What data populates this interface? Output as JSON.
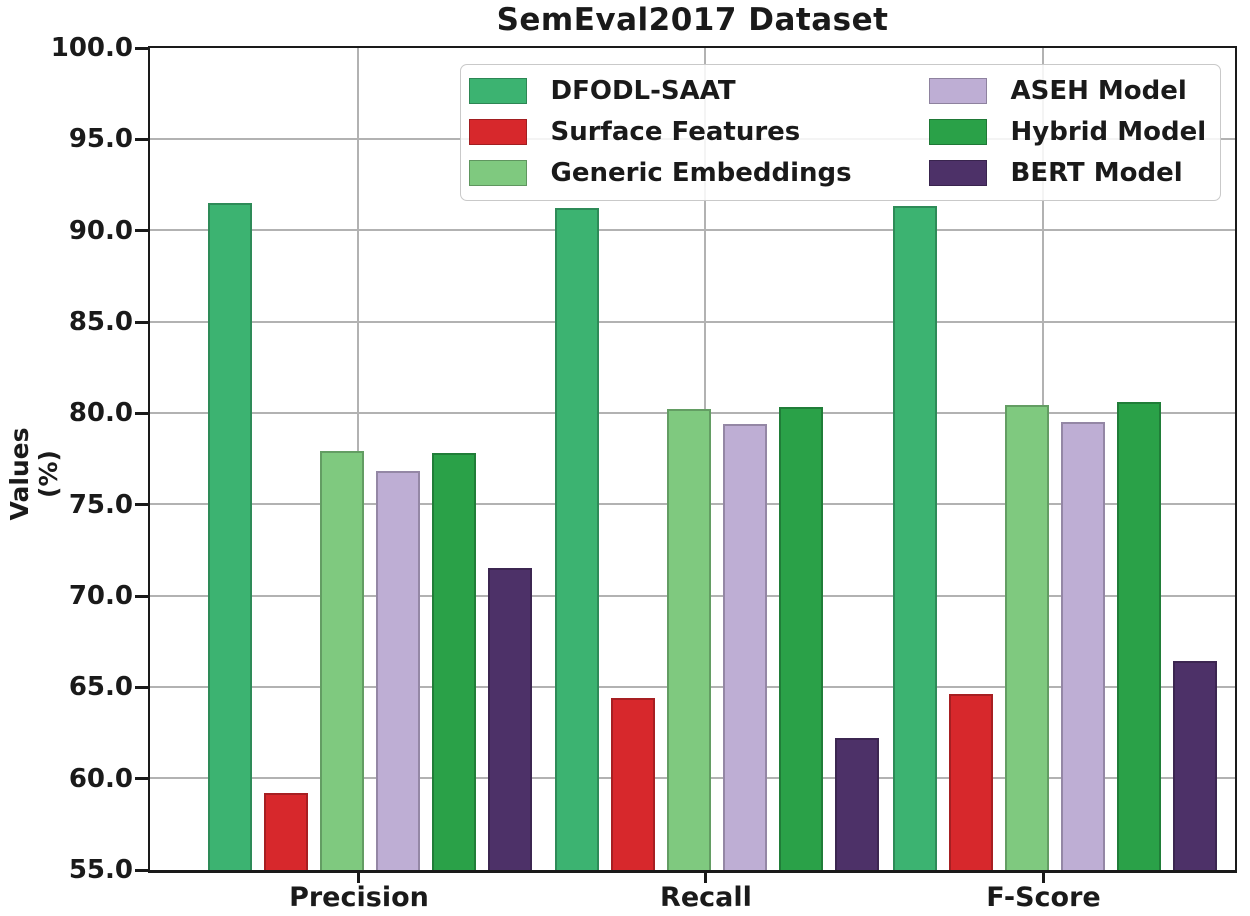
{
  "chart_data": {
    "type": "bar",
    "title": "SemEval2017 Dataset",
    "xlabel": "",
    "ylabel": "Values (%)",
    "categories": [
      "Precision",
      "Recall",
      "F-Score"
    ],
    "series": [
      {
        "name": "DFODL-SAAT",
        "color": "#3CB371",
        "values": [
          91.4,
          91.1,
          91.2
        ]
      },
      {
        "name": "Surface Features",
        "color": "#D7282C",
        "values": [
          59.1,
          64.3,
          64.5
        ]
      },
      {
        "name": "Generic Embeddings",
        "color": "#7FC97F",
        "values": [
          77.8,
          80.1,
          80.3
        ]
      },
      {
        "name": "ASEH Model",
        "color": "#BEAED4",
        "values": [
          76.7,
          79.3,
          79.4
        ]
      },
      {
        "name": "Hybrid Model",
        "color": "#2AA148",
        "values": [
          77.7,
          80.2,
          80.5
        ]
      },
      {
        "name": "BERT Model",
        "color": "#4D3168",
        "values": [
          71.4,
          62.1,
          66.3
        ]
      }
    ],
    "ylim": [
      55,
      100
    ],
    "yticks": [
      55,
      60,
      65,
      70,
      75,
      80,
      85,
      90,
      95,
      100
    ],
    "ytick_labels": [
      "55.0",
      "60.0",
      "65.0",
      "70.0",
      "75.0",
      "80.0",
      "85.0",
      "90.0",
      "95.0",
      "100.0"
    ],
    "grid": true,
    "gridline_color": "#b2b2b2",
    "legend_position": "upper center, inside plot, 2 columns",
    "legend_columns": [
      [
        "DFODL-SAAT",
        "Surface Features",
        "Generic Embeddings"
      ],
      [
        "ASEH Model",
        "Hybrid Model",
        "BERT Model"
      ]
    ]
  }
}
